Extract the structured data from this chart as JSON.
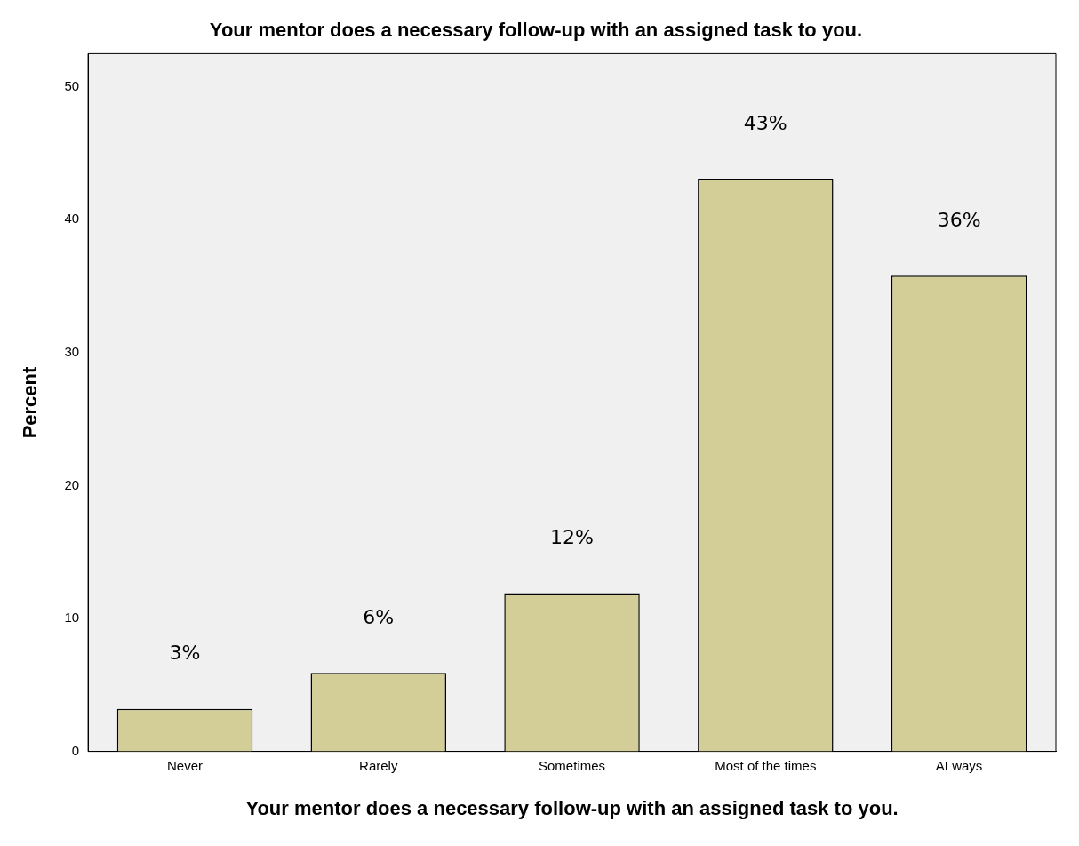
{
  "chart_data": {
    "type": "bar",
    "title": "Your mentor does a necessary follow-up with an assigned task to you.",
    "xlabel": "Your mentor does a necessary follow-up with an assigned task to you.",
    "ylabel": "Percent",
    "categories": [
      "Never",
      "Rarely",
      "Sometimes",
      "Most of the times",
      "ALways"
    ],
    "values": [
      3.2,
      5.9,
      11.9,
      43.1,
      35.8
    ],
    "value_labels": [
      "3%",
      "6%",
      "12%",
      "43%",
      "36%"
    ],
    "color": "#d3ce97",
    "ylim": [
      0,
      52.5
    ],
    "yticks": [
      0,
      10,
      20,
      30,
      40,
      50
    ],
    "grid": false,
    "legend": false
  }
}
